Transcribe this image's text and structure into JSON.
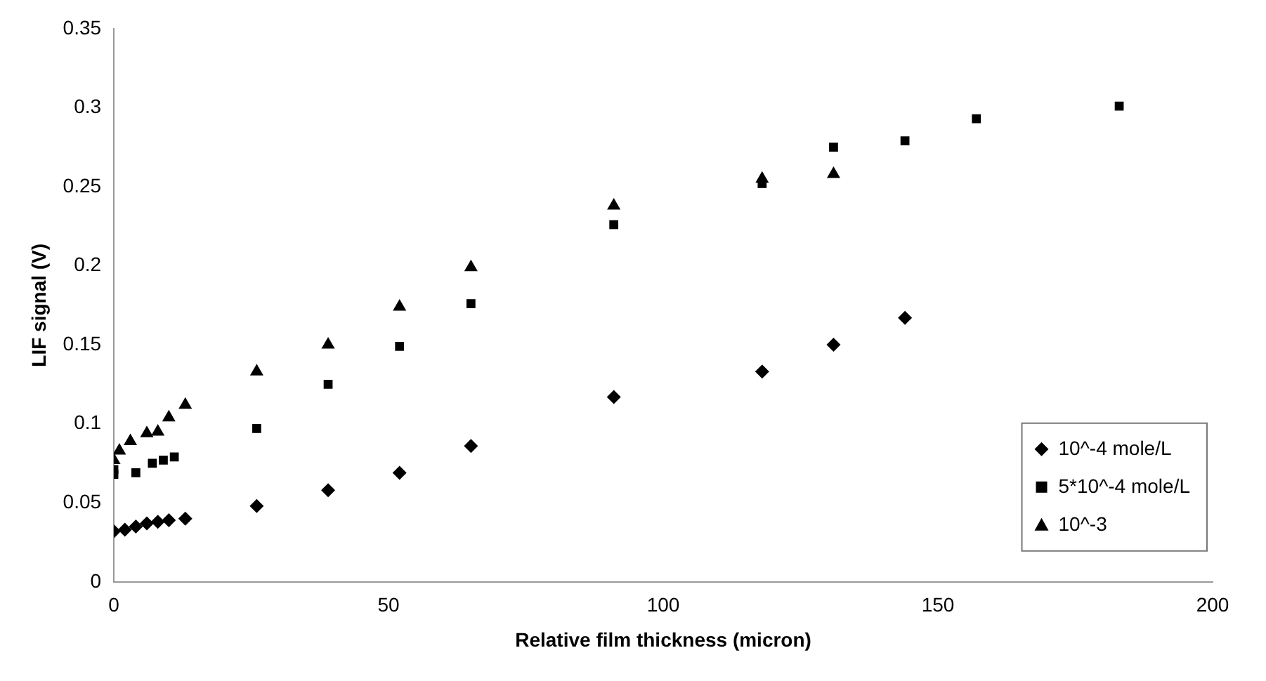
{
  "chart_data": {
    "type": "scatter",
    "xlabel": "Relative film thickness (micron)",
    "ylabel": "LIF signal (V)",
    "xlim": [
      0,
      200
    ],
    "xticks": [
      0,
      50,
      100,
      150,
      200
    ],
    "ylim": [
      0,
      0.35
    ],
    "yticks": [
      0,
      0.05,
      0.1,
      0.15,
      0.2,
      0.25,
      0.3,
      0.35
    ],
    "grid": false,
    "legend": "bottom right",
    "series": [
      {
        "name": "10^-4 mole/L",
        "color": "#000000",
        "marker": "diamond",
        "x": [
          0,
          2,
          4,
          6,
          8,
          10,
          13,
          26,
          39,
          52,
          65,
          91,
          118,
          131,
          144
        ],
        "values": [
          0.032,
          0.033,
          0.035,
          0.037,
          0.038,
          0.039,
          0.04,
          0.048,
          0.058,
          0.069,
          0.086,
          0.117,
          0.133,
          0.15,
          0.167
        ]
      },
      {
        "name": "5*10^-4 mole/L",
        "color": "#000000",
        "marker": "square",
        "x": [
          0,
          0,
          4,
          7,
          9,
          11,
          26,
          39,
          52,
          65,
          91,
          118,
          131,
          144,
          157,
          183
        ],
        "values": [
          0.068,
          0.071,
          0.069,
          0.075,
          0.077,
          0.079,
          0.097,
          0.125,
          0.149,
          0.176,
          0.226,
          0.252,
          0.275,
          0.279,
          0.293,
          0.301
        ]
      },
      {
        "name": "10^-3",
        "color": "#000000",
        "marker": "triangle",
        "x": [
          0,
          1,
          3,
          6,
          8,
          10,
          13,
          26,
          39,
          52,
          65,
          91,
          118,
          131
        ],
        "values": [
          0.077,
          0.083,
          0.089,
          0.094,
          0.095,
          0.104,
          0.112,
          0.133,
          0.15,
          0.174,
          0.199,
          0.238,
          0.255,
          0.258
        ]
      }
    ]
  }
}
